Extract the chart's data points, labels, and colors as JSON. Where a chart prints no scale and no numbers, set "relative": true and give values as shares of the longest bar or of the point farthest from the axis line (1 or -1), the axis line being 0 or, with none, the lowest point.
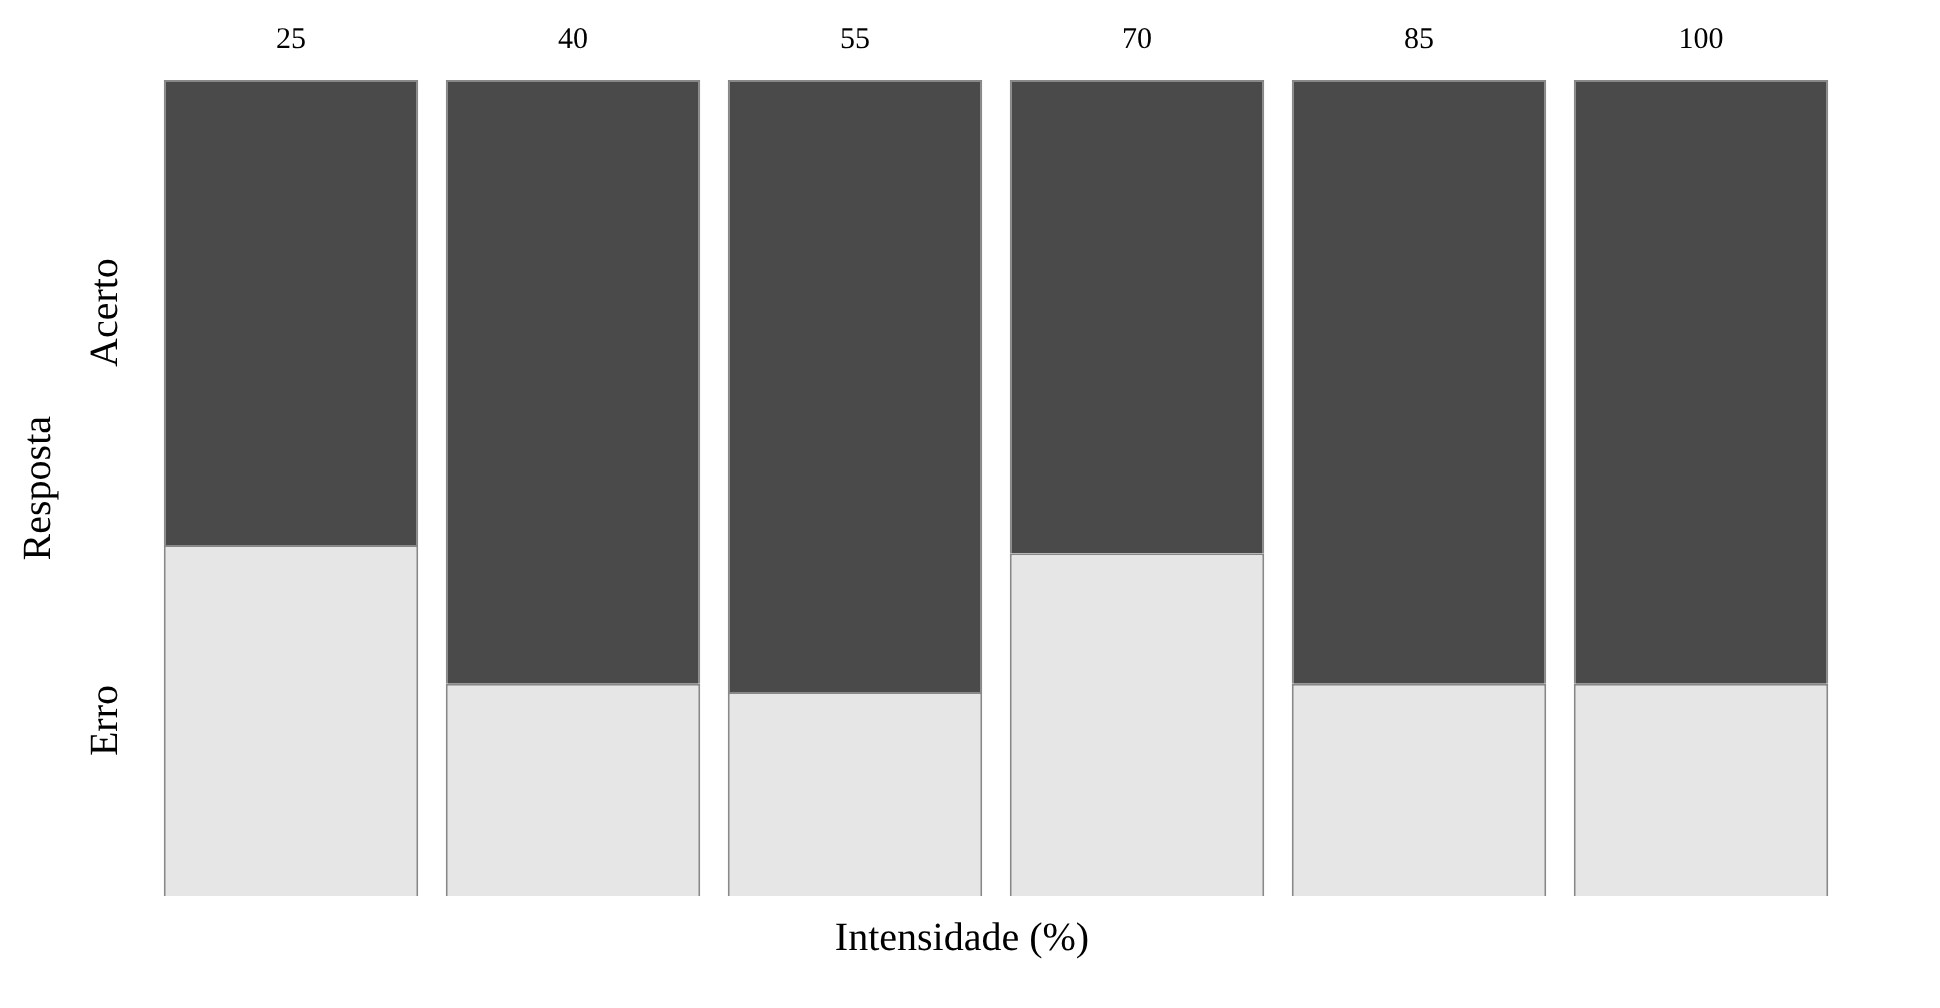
{
  "chart_data": {
    "type": "bar",
    "stacked": true,
    "relative": true,
    "xlabel": "Intensidade (%)",
    "ylabel": "Resposta",
    "categories": [
      "25",
      "40",
      "55",
      "70",
      "85",
      "100"
    ],
    "series": [
      {
        "name": "Erro",
        "color": "#e6e6e6",
        "values": [
          0.43,
          0.26,
          0.25,
          0.42,
          0.26,
          0.26
        ]
      },
      {
        "name": "Acerto",
        "color": "#4a4a4a",
        "values": [
          0.57,
          0.74,
          0.75,
          0.58,
          0.74,
          0.74
        ]
      }
    ]
  }
}
